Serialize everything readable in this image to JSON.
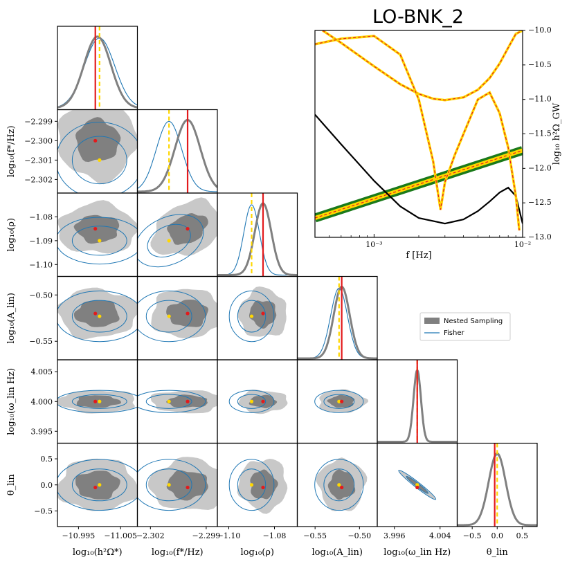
{
  "title": "LO-BNK_2",
  "legend": {
    "items": [
      {
        "label": "Nested Sampling",
        "color": "#808080"
      },
      {
        "label": "Fisher",
        "color": "#1f77b4"
      }
    ]
  },
  "colors": {
    "nested": "#808080",
    "nested_light": "#c8c8c8",
    "fisher": "#1f77b4",
    "truth": "#e31a1c",
    "fisher_mean": "#ffd700",
    "signal_outer": "#ffd700",
    "signal_inner": "#e31a1c",
    "noise": "#000000",
    "pls": "#1a7a1a"
  },
  "chart_data": [
    {
      "type": "corner",
      "parameters": [
        {
          "label": "log₁₀(h²Ω*)",
          "range": [
            -10.99,
            -11.009
          ],
          "ticks": [
            -10.995,
            -11.005
          ],
          "tick_labels": [
            "−10.995",
            "−11.005"
          ],
          "truth": -10.999,
          "fisher_mean": -11.0,
          "nested_mean": -10.9995,
          "nested_sigma": 0.0032,
          "fisher_sigma": 0.0036
        },
        {
          "label": "log₁₀(f*/Hz)",
          "range": [
            -2.3027,
            -2.2984
          ],
          "ticks": [
            -2.302,
            -2.301,
            -2.3,
            -2.299
          ],
          "tick_labels": [
            "−2.302",
            "−2.301",
            "−2.300",
            "−2.299"
          ],
          "truth": -2.3,
          "fisher_mean": -2.301,
          "nested_mean": -2.3,
          "nested_sigma": 0.00068,
          "fisher_sigma": 0.00068
        },
        {
          "label": "log₁₀(ρ)",
          "range": [
            -1.105,
            -1.07
          ],
          "ticks": [
            -1.1,
            -1.09,
            -1.08
          ],
          "tick_labels": [
            "−1.10",
            "−1.09",
            "−1.08"
          ],
          "truth": -1.085,
          "fisher_mean": -1.09,
          "nested_mean": -1.085,
          "nested_sigma": 0.0036,
          "fisher_sigma": 0.0034
        },
        {
          "label": "log₁₀(A_lin)",
          "range": [
            -0.57,
            -0.48
          ],
          "ticks": [
            -0.55,
            -0.5
          ],
          "tick_labels": [
            "−0.55",
            "−0.50"
          ],
          "truth": -0.52,
          "fisher_mean": -0.523,
          "nested_mean": -0.52,
          "nested_sigma": 0.009,
          "fisher_sigma": 0.0095
        },
        {
          "label": "log₁₀(ω_lin Hz)",
          "range": [
            3.993,
            4.007
          ],
          "ticks": [
            3.995,
            4.0,
            4.005
          ],
          "tick_labels": [
            "3.995",
            "4.000",
            "4.005"
          ],
          "truth": 4.0,
          "fisher_mean": 4.0,
          "nested_mean": 4.0,
          "nested_sigma": 0.00065,
          "fisher_sigma": 0.00065
        },
        {
          "label": "θ_lin",
          "range": [
            -0.8,
            0.8
          ],
          "ticks": [
            -0.5,
            0.0,
            0.5
          ],
          "tick_labels": [
            "−0.5",
            "0.0",
            "0.5"
          ],
          "truth": -0.05,
          "fisher_mean": 0.0,
          "nested_mean": 0.0,
          "nested_sigma": 0.17,
          "fisher_sigma": 0.17
        }
      ],
      "x_tick_labels_bottom": {
        "0": [
          "−10.995",
          "−11.005"
        ],
        "1": [
          "−2.302",
          "−2.299"
        ],
        "2": [
          "−1.10",
          "−1.08"
        ],
        "3": [
          "−0.55",
          "−0.50"
        ],
        "4": [
          "3.996",
          "4.004"
        ],
        "5": [
          "−0.5",
          "0.0",
          "0.5"
        ]
      },
      "x_tick_values_bottom": {
        "0": [
          -10.995,
          -11.005
        ],
        "1": [
          -2.302,
          -2.299
        ],
        "2": [
          -1.1,
          -1.08
        ],
        "3": [
          -0.55,
          -0.5
        ],
        "4": [
          3.996,
          4.004
        ],
        "5": [
          -0.5,
          0.0,
          0.5
        ]
      }
    },
    {
      "type": "line",
      "xscale": "log",
      "xlim": [
        0.0004,
        0.01
      ],
      "ylim": [
        -13.0,
        -10.0
      ],
      "xlabel": "f [Hz]",
      "ylabel": "log₁₀ h²Ω_GW",
      "x_tick_labels": [
        "10⁻³",
        "10⁻²"
      ],
      "x_ticks": [
        0.001,
        0.01
      ],
      "y_ticks": [
        -10.0,
        -10.5,
        -11.0,
        -11.5,
        -12.0,
        -12.5,
        -13.0
      ],
      "y_tick_labels": [
        "−10.0",
        "−10.5",
        "−11.0",
        "−11.5",
        "−12.0",
        "−12.5",
        "−13.0"
      ],
      "series": [
        {
          "name": "noise",
          "x": [
            0.0004,
            0.0006,
            0.001,
            0.0015,
            0.002,
            0.003,
            0.004,
            0.005,
            0.006,
            0.007,
            0.008,
            0.009,
            0.01
          ],
          "y": [
            -11.22,
            -11.65,
            -12.18,
            -12.55,
            -12.72,
            -12.8,
            -12.74,
            -12.62,
            -12.48,
            -12.35,
            -12.28,
            -12.4,
            -12.8
          ]
        },
        {
          "name": "pls",
          "x": [
            0.0004,
            0.01
          ],
          "y": [
            -12.72,
            -11.74
          ]
        },
        {
          "name": "component-a",
          "x": [
            0.00045,
            0.0006,
            0.001,
            0.0015,
            0.002,
            0.0025,
            0.003,
            0.004,
            0.005,
            0.006,
            0.007,
            0.008,
            0.009,
            0.01
          ],
          "y": [
            -10.0,
            -10.18,
            -10.52,
            -10.78,
            -10.92,
            -10.99,
            -11.01,
            -10.97,
            -10.86,
            -10.69,
            -10.48,
            -10.25,
            -10.05,
            -10.0
          ]
        },
        {
          "name": "component-b",
          "x": [
            0.0004,
            0.0006,
            0.001,
            0.0015,
            0.002,
            0.0025,
            0.0028,
            0.003,
            0.0035,
            0.004,
            0.005,
            0.006,
            0.007,
            0.008,
            0.009,
            0.0095
          ],
          "y": [
            -10.2,
            -10.12,
            -10.08,
            -10.35,
            -11.0,
            -11.9,
            -12.6,
            -12.2,
            -11.8,
            -11.5,
            -11.0,
            -10.9,
            -11.2,
            -11.7,
            -12.4,
            -12.9
          ]
        }
      ]
    }
  ]
}
